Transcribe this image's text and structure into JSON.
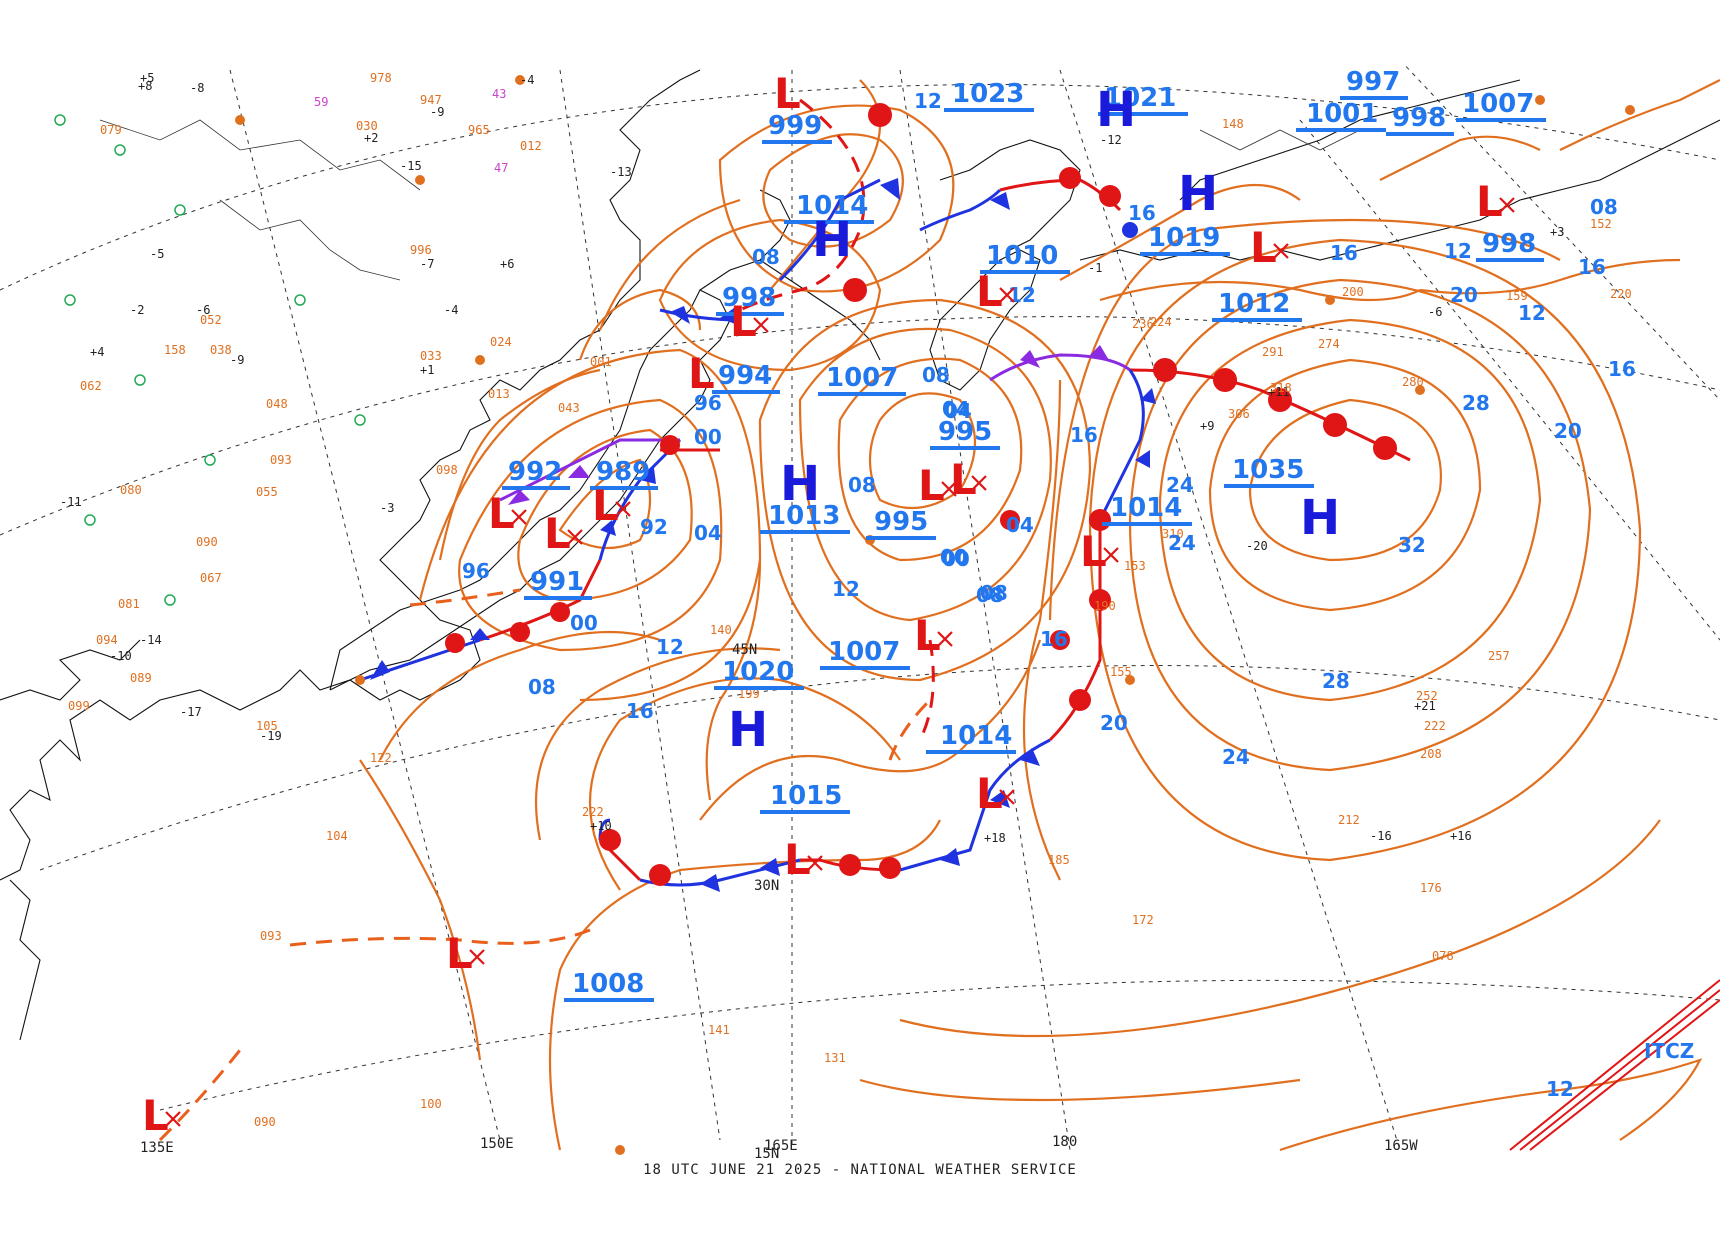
{
  "footer": "18 UTC JUNE 21 2025 - NATIONAL WEATHER SERVICE",
  "colors": {
    "isobar": "#e07020",
    "high": "#1a1adb",
    "low": "#e01515",
    "label": "#2277ee",
    "cold_front": "#1f33e0",
    "warm_front": "#e01515",
    "occluded_front": "#8a2be2"
  },
  "axis_labels": [
    "135E",
    "150E",
    "165E",
    "180",
    "165W",
    "15N",
    "30N",
    "45N"
  ],
  "pressure_labels": [
    "999",
    "1014",
    "998",
    "994",
    "1007",
    "992",
    "989",
    "991",
    "1013",
    "995",
    "1023",
    "1021",
    "1010",
    "1019",
    "1012",
    "1001",
    "997",
    "998",
    "1007",
    "998",
    "995",
    "1014",
    "1035",
    "1020",
    "1007",
    "1014",
    "1015",
    "1008"
  ],
  "isobar_labels": [
    "08",
    "12",
    "96",
    "00",
    "04",
    "92",
    "96",
    "00",
    "08",
    "12",
    "16",
    "12",
    "08",
    "04",
    "00",
    "04",
    "08",
    "16",
    "16",
    "20",
    "24",
    "24",
    "28",
    "32",
    "28",
    "24",
    "20",
    "16",
    "12",
    "16",
    "20",
    "16",
    "12",
    "08",
    "16",
    "12",
    "08",
    "04",
    "00",
    "08",
    "12"
  ],
  "centers": {
    "highs": [
      "H",
      "H",
      "H",
      "H",
      "H",
      "H"
    ],
    "lows": [
      "L",
      "L",
      "L",
      "L",
      "L",
      "L",
      "L",
      "L",
      "L",
      "L",
      "L",
      "L",
      "L",
      "L",
      "L",
      "L",
      "L"
    ]
  },
  "itcz_label": "ITCZ",
  "station_samples": [
    "+5",
    "-8",
    "978",
    "-4",
    "947",
    "-9",
    "965",
    "012",
    "59",
    "43",
    "-13",
    "47",
    "+2",
    "030",
    "-15",
    "996",
    "+6",
    "-5",
    "-7",
    "-6",
    "+1",
    "-4",
    "-2",
    "-9",
    "+4",
    "-11",
    "-3",
    "-10",
    "-12",
    "-14",
    "-17",
    "-19",
    "-16",
    "+10",
    "+8",
    "+9",
    "+11",
    "+21",
    "+16",
    "+18",
    "-20",
    "+3",
    "-6",
    "-1",
    "080",
    "052",
    "062",
    "098",
    "079",
    "158",
    "038",
    "033",
    "024",
    "001",
    "013",
    "043",
    "048",
    "093",
    "055",
    "090",
    "067",
    "094",
    "081",
    "089",
    "099",
    "105",
    "122",
    "104",
    "093",
    "140",
    "199",
    "222",
    "185",
    "172",
    "141",
    "131",
    "100",
    "090",
    "257",
    "252",
    "222",
    "208",
    "212",
    "176",
    "078",
    "310",
    "306",
    "318",
    "291",
    "274",
    "280",
    "200",
    "236",
    "224",
    "152",
    "220",
    "159",
    "153",
    "190",
    "155",
    "148"
  ]
}
